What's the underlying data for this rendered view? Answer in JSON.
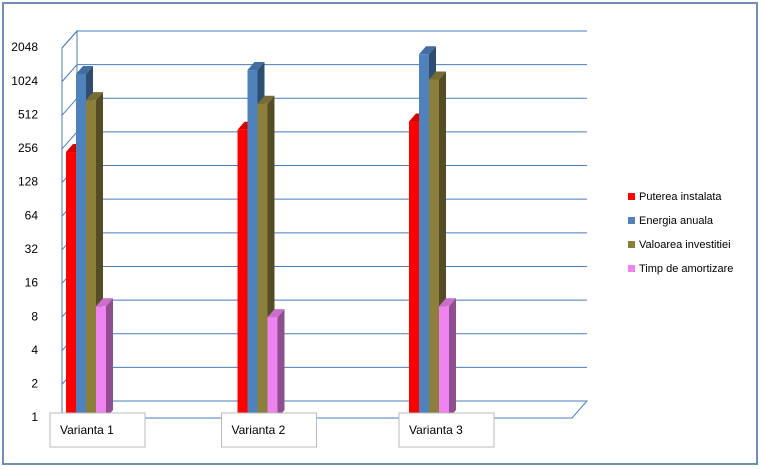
{
  "chart_data": {
    "type": "bar3d",
    "log_scale": true,
    "grid": true,
    "categories": [
      "Varianta 1",
      "Varianta 2",
      "Varianta 3"
    ],
    "series": [
      {
        "name": "Puterea instalata",
        "color": "#ff0000",
        "values": [
          240,
          380,
          450
        ]
      },
      {
        "name": "Energia anuala",
        "color": "#4f81bd",
        "values": [
          1200,
          1300,
          1800
        ]
      },
      {
        "name": "Valoarea investitiei",
        "color": "#8c7f3c",
        "values": [
          700,
          650,
          1070
        ]
      },
      {
        "name": "Timp de amortizare",
        "color": "#ee82ee",
        "values": [
          10,
          8,
          10
        ]
      }
    ],
    "ylim": [
      1,
      2048
    ],
    "yticks": [
      1,
      2,
      4,
      8,
      16,
      32,
      64,
      128,
      256,
      512,
      1024,
      2048
    ],
    "legend": "right"
  }
}
